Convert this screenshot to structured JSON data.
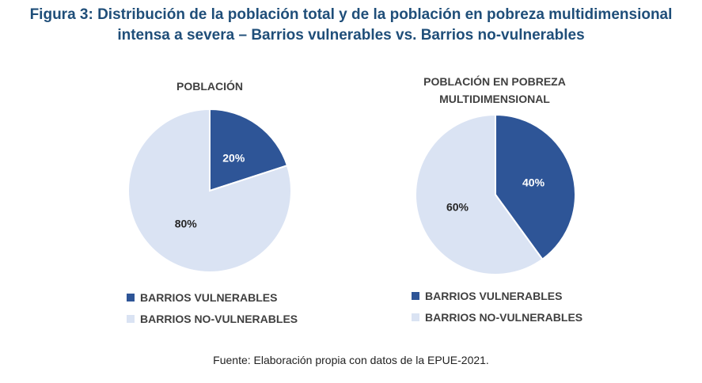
{
  "figure": {
    "title_line1": "Figura 3: Distribución de la población total y de la población en pobreza multidimensional",
    "title_line2": "intensa a severa – Barrios vulnerables vs. Barrios no-vulnerables",
    "source": "Fuente: Elaboración propia con datos de la EPUE-2021."
  },
  "colors": {
    "vulnerables": "#2e5597",
    "no_vulnerables": "#dae3f3",
    "title": "#1f4e79"
  },
  "chart_data": [
    {
      "type": "pie",
      "title_lines": [
        "POBLACIÓN"
      ],
      "categories": [
        "BARRIOS VULNERABLES",
        "BARRIOS NO-VULNERABLES"
      ],
      "values": [
        20,
        80
      ],
      "labels": [
        "20%",
        "80%"
      ],
      "legend": "bottom"
    },
    {
      "type": "pie",
      "title_lines": [
        "POBLACIÓN EN POBREZA",
        "MULTIDIMENSIONAL"
      ],
      "categories": [
        "BARRIOS VULNERABLES",
        "BARRIOS NO-VULNERABLES"
      ],
      "values": [
        40,
        60
      ],
      "labels": [
        "40%",
        "60%"
      ],
      "legend": "bottom"
    }
  ]
}
